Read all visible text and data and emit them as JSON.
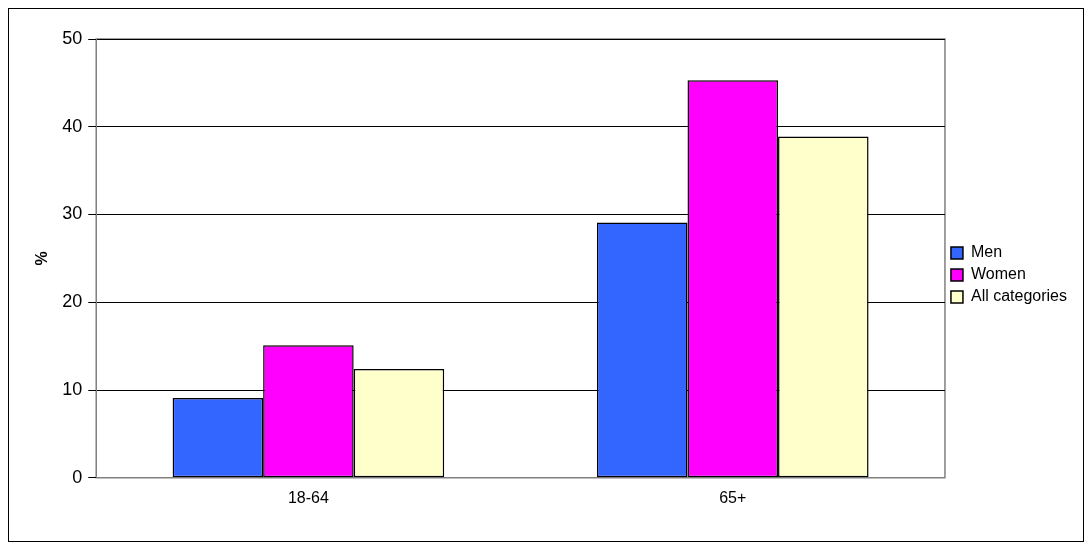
{
  "chart_data": {
    "type": "bar",
    "ylabel": "%",
    "categories": [
      "18-64",
      "65+"
    ],
    "series": [
      {
        "name": "Men",
        "color": "#3366ff",
        "values": [
          9.1,
          29.1
        ]
      },
      {
        "name": "Women",
        "color": "#ff00ff",
        "values": [
          15.1,
          45.3
        ]
      },
      {
        "name": "All categories",
        "color": "#ffffcc",
        "values": [
          12.4,
          38.9
        ]
      }
    ],
    "ylim": [
      0,
      50
    ],
    "yticks": [
      0,
      10,
      20,
      30,
      40,
      50
    ],
    "grid": "y",
    "legend": "right"
  }
}
